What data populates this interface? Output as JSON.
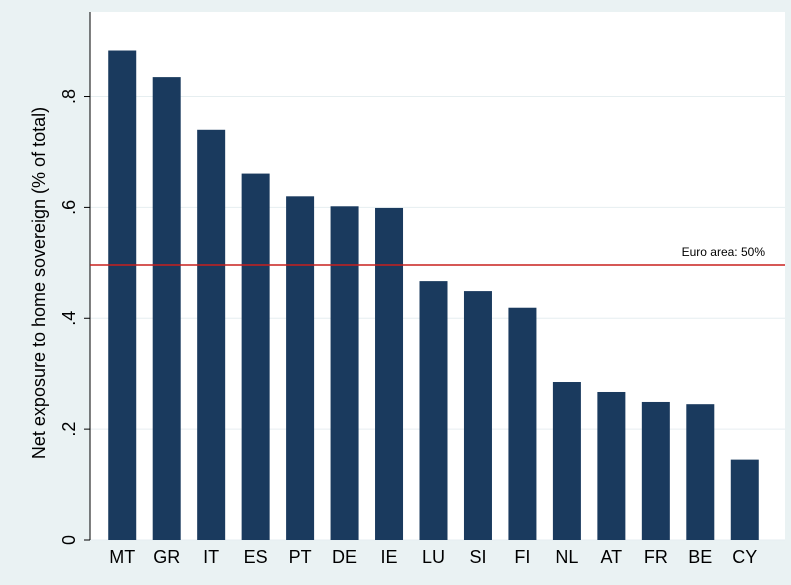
{
  "chart_data": {
    "type": "bar",
    "y_label": "Net exposure to home sovereign (% of total)",
    "categories": [
      "MT",
      "GR",
      "IT",
      "ES",
      "PT",
      "DE",
      "IE",
      "LU",
      "SI",
      "FI",
      "NL",
      "AT",
      "FR",
      "BE",
      "CY"
    ],
    "values": [
      0.883,
      0.835,
      0.74,
      0.661,
      0.62,
      0.602,
      0.599,
      0.467,
      0.449,
      0.419,
      0.285,
      0.267,
      0.249,
      0.245,
      0.145
    ],
    "color": "#1a3a5e",
    "ylim": [
      0,
      0.92
    ],
    "yticks": [
      0,
      {
        "value": 0.2,
        "label": ".2"
      },
      {
        "value": 0.4,
        "label": ".4"
      },
      {
        "value": 0.6,
        "label": ".6"
      },
      {
        "value": 0.8,
        "label": ".8"
      }
    ],
    "grid": true,
    "reference_line": {
      "value": 0.496,
      "label": "Euro area: 50%",
      "color": "#c8201e"
    }
  }
}
